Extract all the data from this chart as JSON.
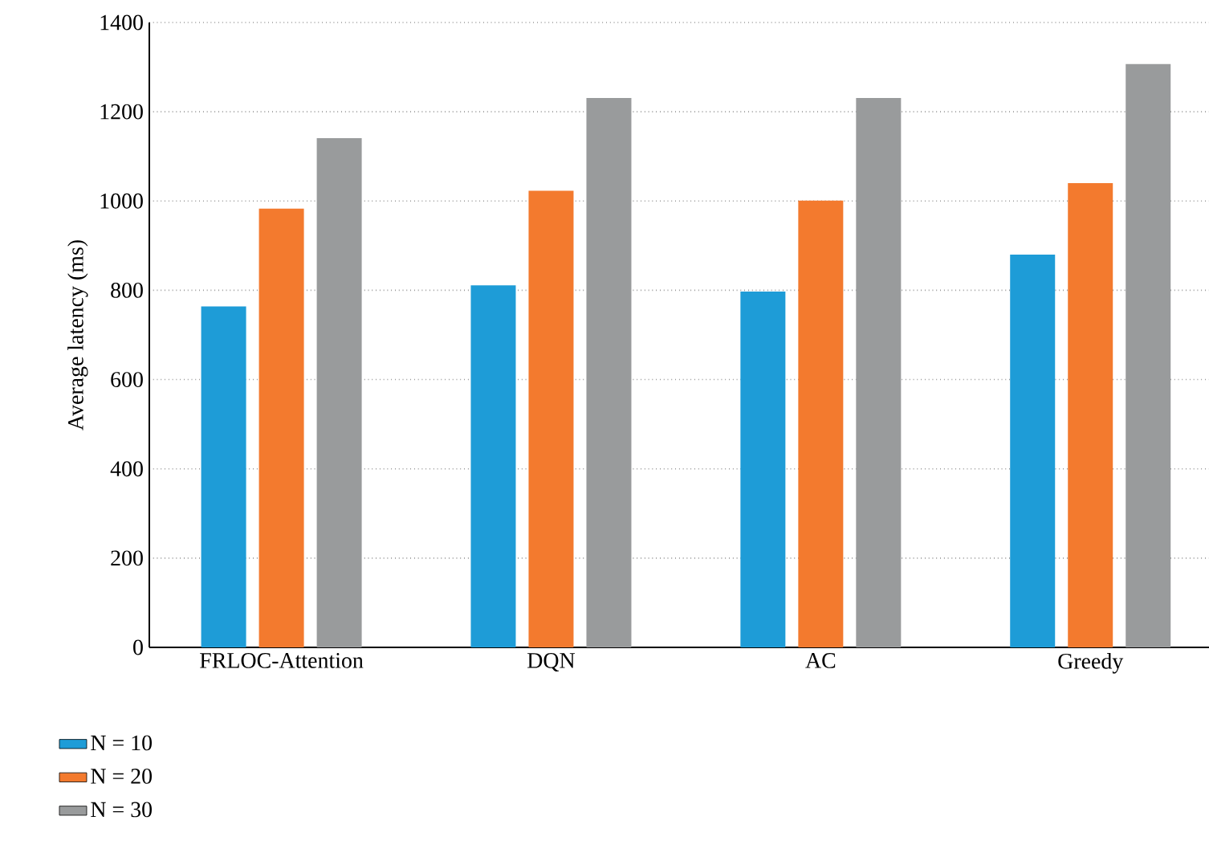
{
  "chart_data": {
    "type": "bar",
    "ylabel": "Average latency (ms)",
    "categories": [
      "FRLOC-Attention",
      "DQN",
      "AC",
      "Greedy"
    ],
    "series": [
      {
        "name": "N = 10",
        "color": "#1e9cd7",
        "values": [
          764,
          811,
          797,
          880
        ]
      },
      {
        "name": "N = 20",
        "color": "#f37a2e",
        "values": [
          983,
          1023,
          1001,
          1040
        ]
      },
      {
        "name": "N = 30",
        "color": "#999b9c",
        "values": [
          1141,
          1231,
          1231,
          1307
        ]
      }
    ],
    "ylim": [
      0,
      1400
    ],
    "yticks": [
      0,
      200,
      400,
      600,
      800,
      1000,
      1200,
      1400
    ],
    "grid": "y",
    "legend": "bottom left"
  }
}
